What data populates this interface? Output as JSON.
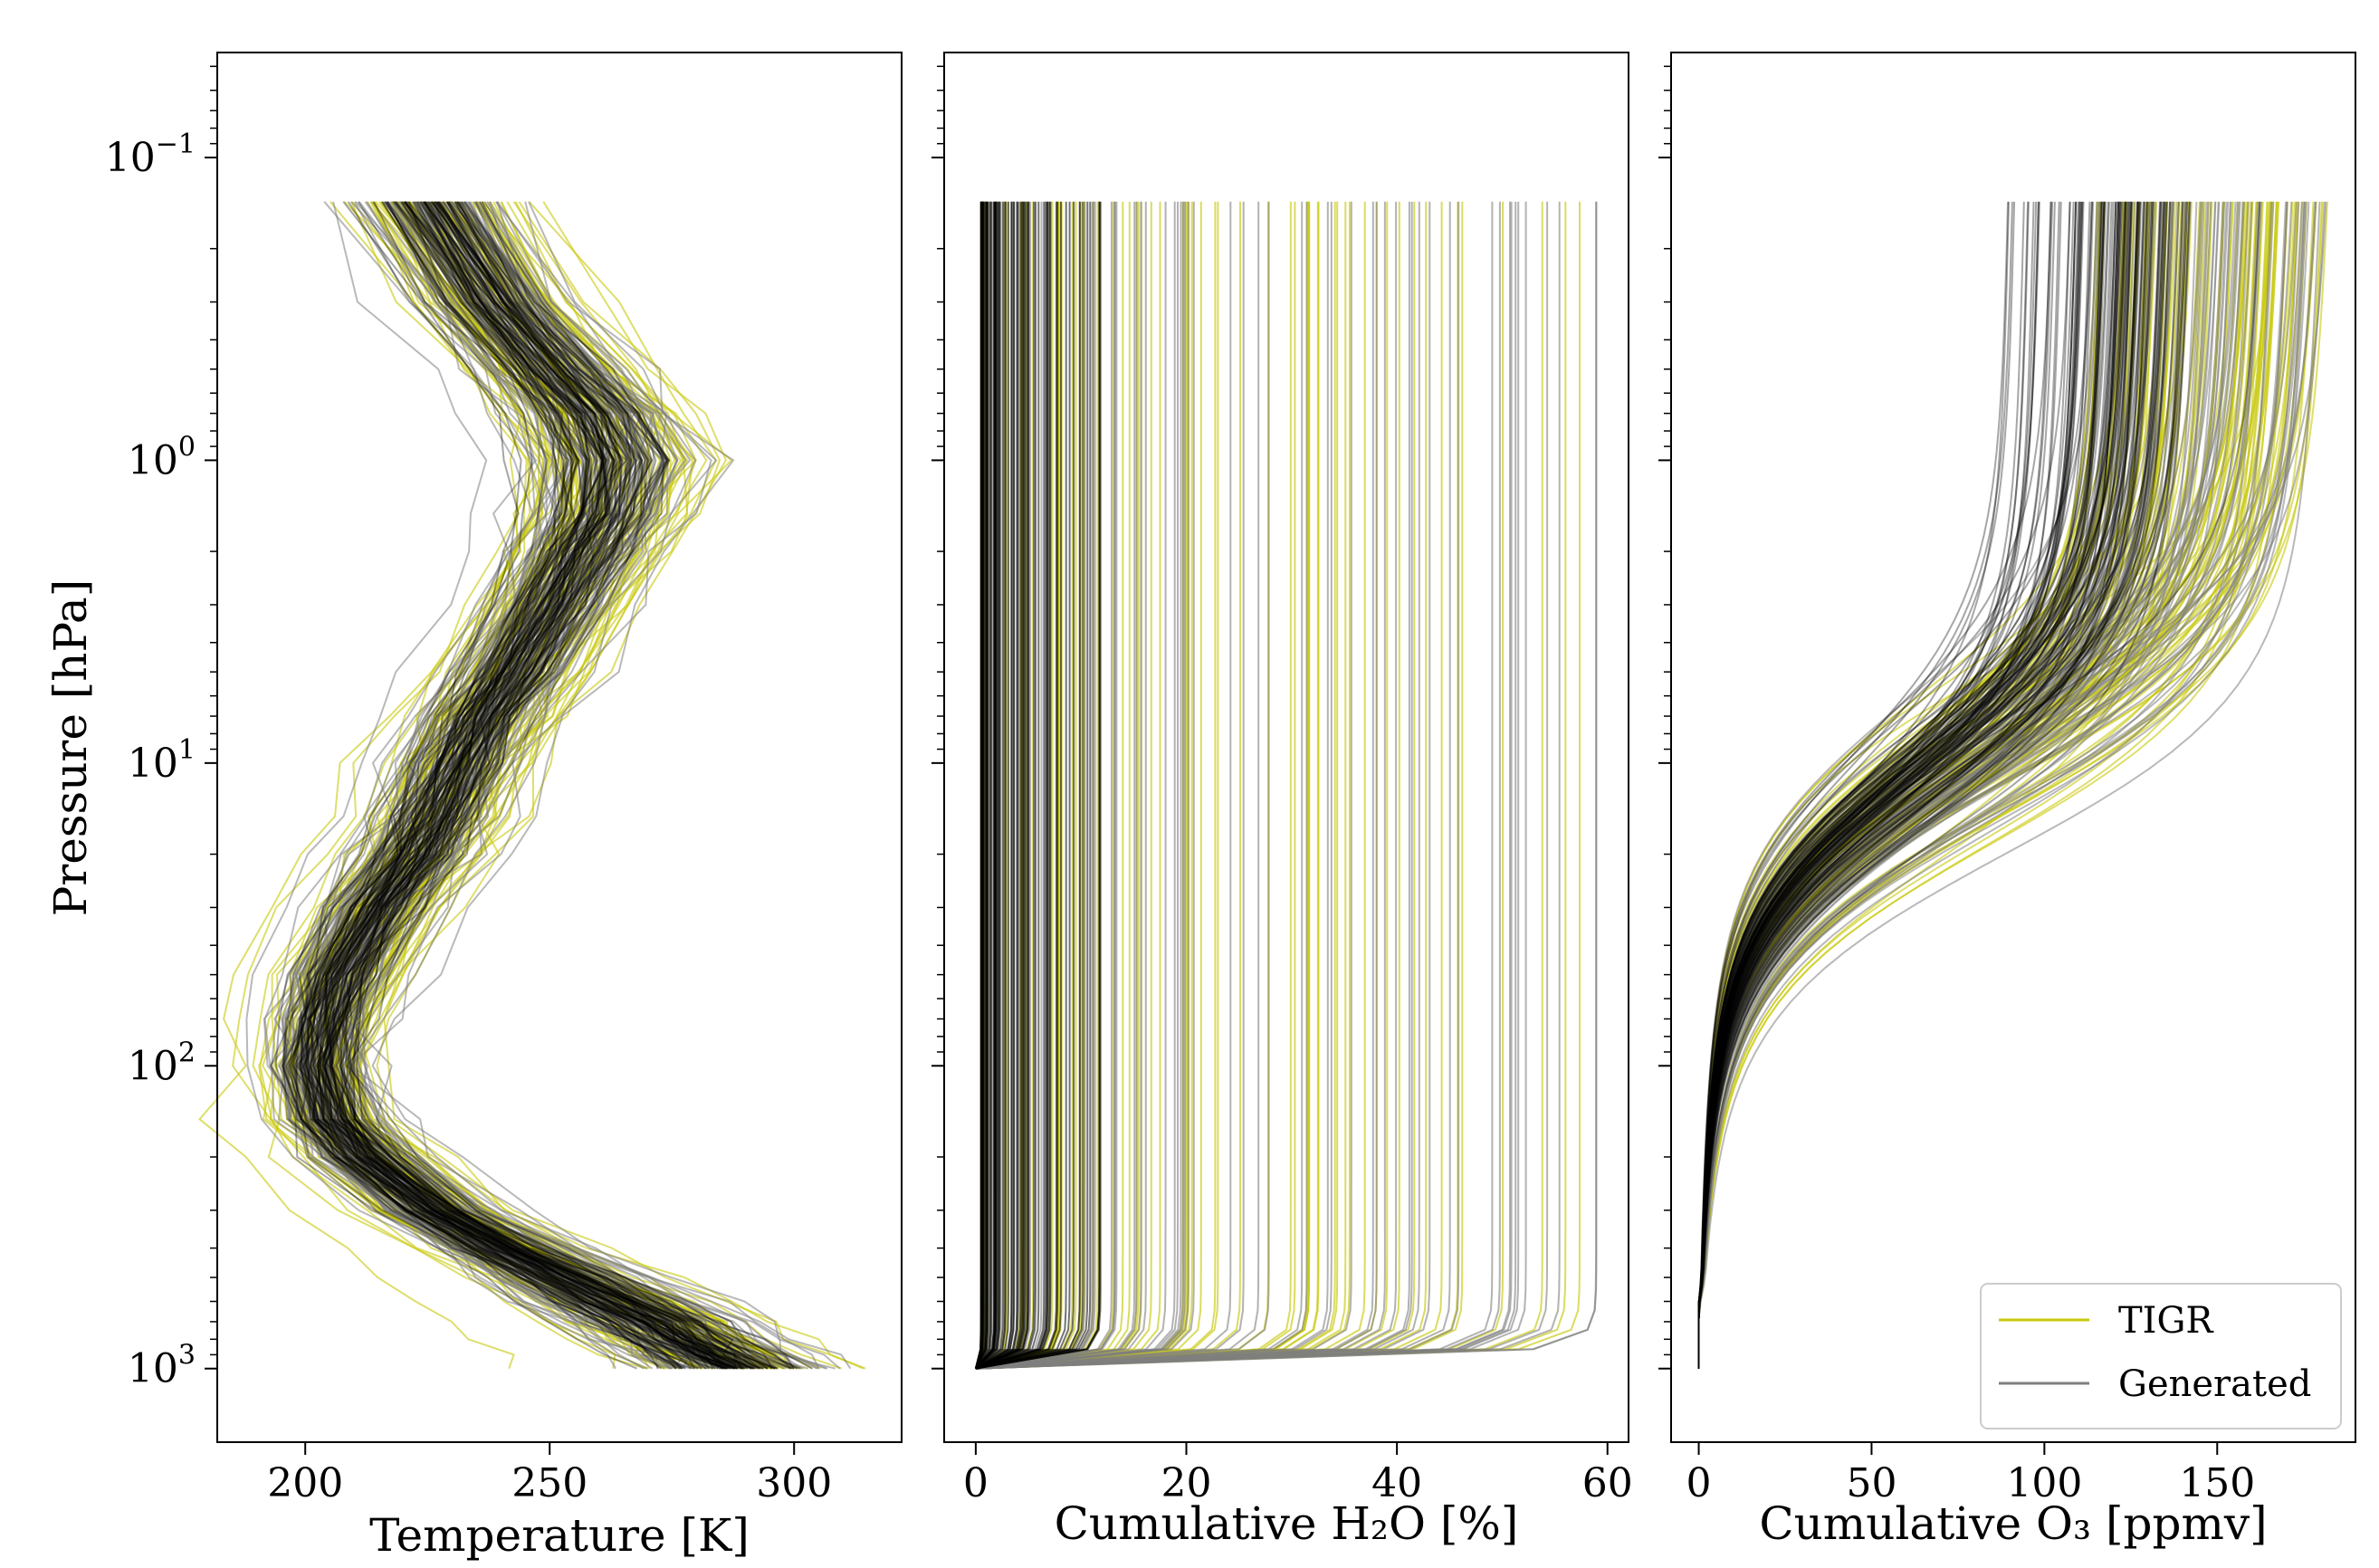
{
  "chart_data": [
    {
      "type": "line",
      "panel": "temperature",
      "xlabel": "Temperature [K]",
      "ylabel": "Pressure [hPa]",
      "xlim": [
        182,
        322
      ],
      "ylim": [
        1750,
        0.045
      ],
      "yscale": "log",
      "xticks": [
        "200",
        "250",
        "300"
      ],
      "yticks": [
        "10^-1",
        "10^0",
        "10^1",
        "10^2",
        "10^3"
      ],
      "pressure_levels": [
        0.14,
        0.3,
        0.5,
        0.7,
        1.0,
        1.5,
        2,
        3,
        5,
        7,
        10,
        15,
        20,
        30,
        50,
        70,
        100,
        150,
        200,
        300,
        400,
        500,
        600,
        700,
        800,
        900,
        1000
      ],
      "mean_profile": [
        225,
        238,
        250,
        258,
        262,
        260,
        256,
        250,
        242,
        236,
        231,
        226,
        222,
        214,
        207,
        204,
        202,
        205,
        212,
        226,
        240,
        252,
        262,
        270,
        276,
        282,
        287
      ],
      "profile_spread": [
        10,
        10,
        11,
        12,
        13,
        12,
        11,
        11,
        11,
        11,
        11,
        11,
        11,
        11,
        10,
        9,
        8,
        9,
        10,
        10,
        11,
        12,
        13,
        13,
        12,
        12,
        12
      ],
      "series": [
        {
          "name": "TIGR",
          "color": "#c8c80a",
          "count": 90
        },
        {
          "name": "Generated",
          "color": "#7f7f7f",
          "count": 80
        }
      ],
      "overlay_color": "#000000"
    },
    {
      "type": "line",
      "panel": "water-vapour",
      "xlabel": "Cumulative H₂O [%]",
      "ylabel": "",
      "xlim": [
        -3,
        62
      ],
      "ylim": [
        1750,
        0.045
      ],
      "yscale": "log",
      "xticks": [
        "0",
        "20",
        "40",
        "60"
      ],
      "profile_totals_range": [
        0.5,
        59.5
      ],
      "series": [
        {
          "name": "TIGR",
          "color": "#c8c80a",
          "count": 80
        },
        {
          "name": "Generated",
          "color": "#7f7f7f",
          "count": 70
        }
      ],
      "overlay_color": "#000000"
    },
    {
      "type": "line",
      "panel": "ozone",
      "xlabel": "Cumulative O₃ [ppmv]",
      "ylabel": "",
      "xlim": [
        -8,
        190
      ],
      "ylim": [
        1750,
        0.045
      ],
      "yscale": "log",
      "xticks": [
        "0",
        "50",
        "100",
        "150"
      ],
      "profile_totals_range": [
        78,
        182
      ],
      "series": [
        {
          "name": "TIGR",
          "color": "#c8c80a",
          "count": 100
        },
        {
          "name": "Generated",
          "color": "#7f7f7f",
          "count": 90
        }
      ],
      "overlay_color": "#000000",
      "legend": {
        "position": "lower-right",
        "entries": [
          "TIGR",
          "Generated"
        ]
      }
    }
  ]
}
